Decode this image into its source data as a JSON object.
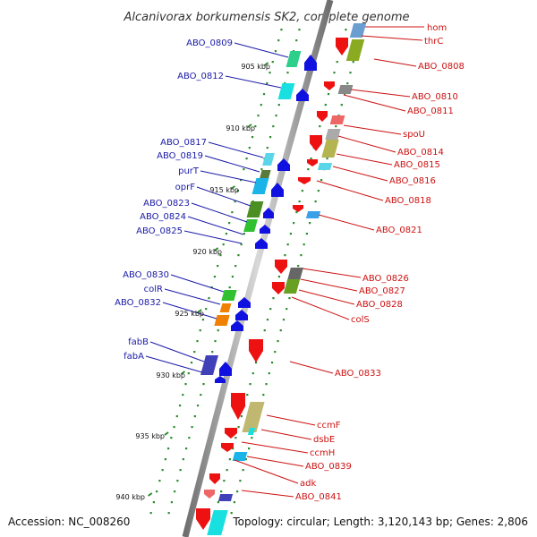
{
  "title": "Alcanivorax borkumensis SK2, complete genome",
  "footer": {
    "accession": "Accession: NC_008260",
    "topology": "Topology: circular; Length: 3,120,143 bp; Genes: 2,806"
  },
  "colors": {
    "left_label": "#1a1aa8",
    "right_label": "#cc1111",
    "backbone": "#7a7a7a",
    "tick": "#2e8b2e"
  },
  "kbp_ticks": [
    "905 kbp",
    "910 kbp",
    "915 kbp",
    "920 kbp",
    "925 kbp",
    "930 kbp",
    "935 kbp",
    "940 kbp"
  ],
  "left_labels": [
    "ABO_0809",
    "ABO_0812",
    "ABO_0817",
    "ABO_0819",
    "purT",
    "oprF",
    "ABO_0823",
    "ABO_0824",
    "ABO_0825",
    "ABO_0830",
    "colR",
    "ABO_0832",
    "fabB",
    "fabA"
  ],
  "right_labels": [
    "hom",
    "thrC",
    "ABO_0808",
    "ABO_0810",
    "ABO_0811",
    "spoU",
    "ABO_0814",
    "ABO_0815",
    "ABO_0816",
    "ABO_0818",
    "ABO_0821",
    "ABO_0826",
    "ABO_0827",
    "ABO_0828",
    "colS",
    "ABO_0833",
    "ccmF",
    "dsbE",
    "ccmH",
    "ABO_0839",
    "adk",
    "ABO_0841"
  ]
}
